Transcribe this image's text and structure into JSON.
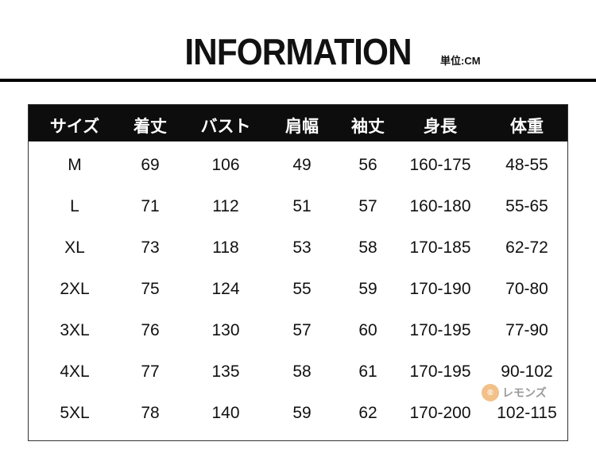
{
  "title": "INFORMATION",
  "unit": "単位:CM",
  "table": {
    "headers": [
      "サイズ",
      "着丈",
      "バスト",
      "肩幅",
      "袖丈",
      "身長",
      "体重"
    ],
    "rows": [
      [
        "M",
        "69",
        "106",
        "49",
        "56",
        "160-175",
        "48-55"
      ],
      [
        "L",
        "71",
        "112",
        "51",
        "57",
        "160-180",
        "55-65"
      ],
      [
        "XL",
        "73",
        "118",
        "53",
        "58",
        "170-185",
        "62-72"
      ],
      [
        "2XL",
        "75",
        "124",
        "55",
        "59",
        "170-190",
        "70-80"
      ],
      [
        "3XL",
        "76",
        "130",
        "57",
        "60",
        "170-195",
        "77-90"
      ],
      [
        "4XL",
        "77",
        "135",
        "58",
        "61",
        "170-195",
        "90-102"
      ],
      [
        "5XL",
        "78",
        "140",
        "59",
        "62",
        "170-200",
        "102-115"
      ]
    ]
  },
  "watermark": {
    "text": "レモンズ",
    "icon": "lemon-logo-icon",
    "color": "#f2c089"
  }
}
